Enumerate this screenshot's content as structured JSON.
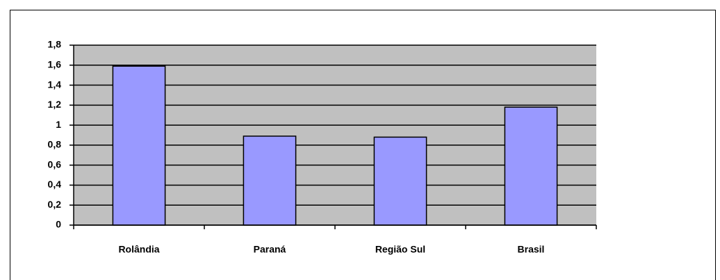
{
  "chart_data": {
    "type": "bar",
    "categories": [
      "Rolândia",
      "Paraná",
      "Região Sul",
      "Brasil"
    ],
    "values": [
      1.59,
      0.89,
      0.88,
      1.18
    ],
    "color": "#9999ff",
    "ylim": [
      0,
      1.8
    ],
    "yticks": [
      0,
      {
        "value": 0.2,
        "label": "0,2"
      },
      {
        "value": 0.4,
        "label": "0,4"
      },
      {
        "value": 0.6,
        "label": "0,6"
      },
      {
        "value": 0.8,
        "label": "0,8"
      },
      1,
      {
        "value": 1.2,
        "label": "1,2"
      },
      {
        "value": 1.4,
        "label": "1,4"
      },
      {
        "value": 1.6,
        "label": "1,6"
      },
      {
        "value": 1.8,
        "label": "1,8"
      }
    ],
    "grid": true
  }
}
